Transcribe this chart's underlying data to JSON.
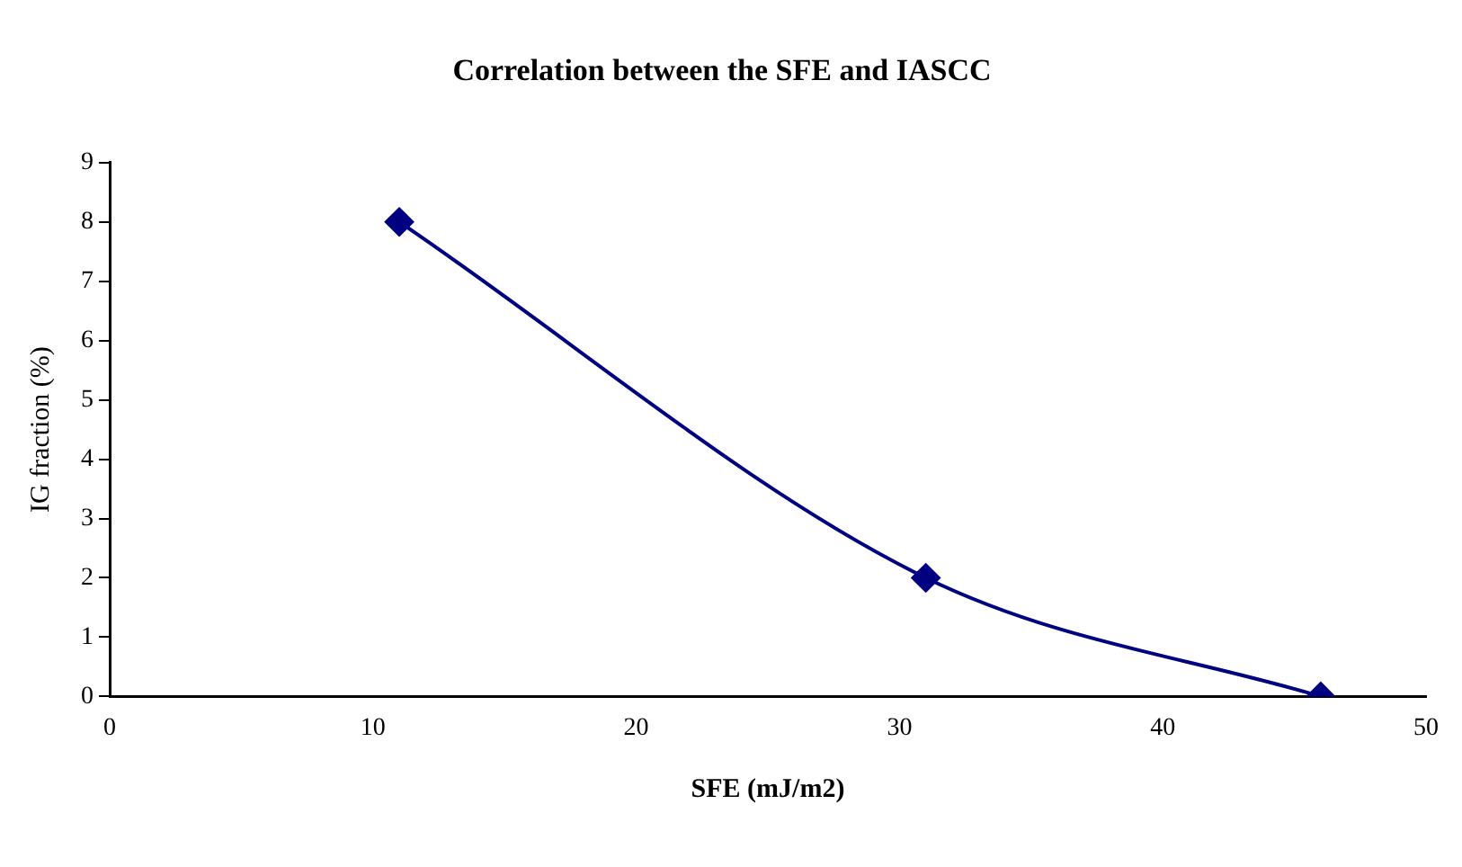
{
  "chart_data": {
    "type": "line",
    "title": "Correlation between the SFE and IASCC",
    "xlabel": "SFE (mJ/m2)",
    "ylabel": "IG fraction (%)",
    "x": [
      11,
      31,
      46
    ],
    "series": [
      {
        "color": "#000080",
        "values": [
          8,
          2,
          0
        ]
      }
    ],
    "xlim": [
      0,
      50
    ],
    "xticks": [
      0,
      10,
      20,
      30,
      40,
      50
    ],
    "ylim": [
      0,
      9
    ],
    "yticks": [
      0,
      1,
      2,
      3,
      4,
      5,
      6,
      7,
      8,
      9
    ],
    "grid": false,
    "legend": false,
    "marker": "diamond",
    "line_style": "solid"
  }
}
